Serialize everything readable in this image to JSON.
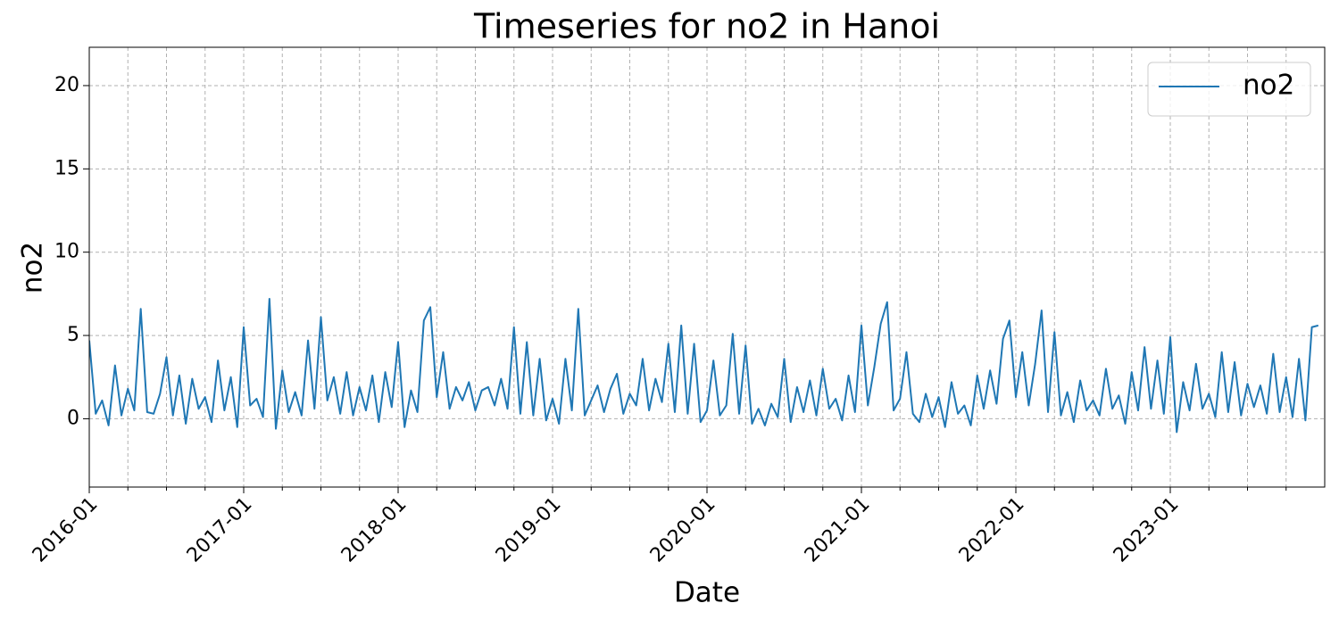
{
  "chart_data": {
    "type": "line",
    "title": "Timeseries for no2 in Hanoi",
    "x_label": "Date",
    "y_label": "no2",
    "x": [
      "2016-01",
      "2016-01",
      "2016-02",
      "2016-02",
      "2016-03",
      "2016-03",
      "2016-04",
      "2016-04",
      "2016-05",
      "2016-05",
      "2016-06",
      "2016-06",
      "2016-07",
      "2016-07",
      "2016-08",
      "2016-08",
      "2016-09",
      "2016-09",
      "2016-10",
      "2016-10",
      "2016-11",
      "2016-11",
      "2016-12",
      "2016-12",
      "2017-01",
      "2017-01",
      "2017-02",
      "2017-02",
      "2017-03",
      "2017-03",
      "2017-04",
      "2017-04",
      "2017-05",
      "2017-05",
      "2017-06",
      "2017-06",
      "2017-07",
      "2017-07",
      "2017-08",
      "2017-08",
      "2017-09",
      "2017-09",
      "2017-10",
      "2017-10",
      "2017-11",
      "2017-11",
      "2017-12",
      "2017-12",
      "2018-01",
      "2018-01",
      "2018-02",
      "2018-02",
      "2018-03",
      "2018-03",
      "2018-04",
      "2018-04",
      "2018-05",
      "2018-05",
      "2018-06",
      "2018-06",
      "2018-07",
      "2018-07",
      "2018-08",
      "2018-08",
      "2018-09",
      "2018-09",
      "2018-10",
      "2018-10",
      "2018-11",
      "2018-11",
      "2018-12",
      "2018-12",
      "2019-01",
      "2019-01",
      "2019-02",
      "2019-02",
      "2019-03",
      "2019-03",
      "2019-04",
      "2019-04",
      "2019-05",
      "2019-05",
      "2019-06",
      "2019-06",
      "2019-07",
      "2019-07",
      "2019-08",
      "2019-08",
      "2019-09",
      "2019-09",
      "2019-10",
      "2019-10",
      "2019-11",
      "2019-11",
      "2019-12",
      "2019-12",
      "2020-01",
      "2020-01",
      "2020-02",
      "2020-02",
      "2020-03",
      "2020-03",
      "2020-04",
      "2020-04",
      "2020-05",
      "2020-05",
      "2020-06",
      "2020-06",
      "2020-07",
      "2020-07",
      "2020-08",
      "2020-08",
      "2020-09",
      "2020-09",
      "2020-10",
      "2020-10",
      "2020-11",
      "2020-11",
      "2020-12",
      "2020-12",
      "2021-01",
      "2021-01",
      "2021-02",
      "2021-02",
      "2021-03",
      "2021-03",
      "2021-04",
      "2021-04",
      "2021-05",
      "2021-05",
      "2021-06",
      "2021-06",
      "2021-07",
      "2021-07",
      "2021-08",
      "2021-08",
      "2021-09",
      "2021-09",
      "2021-10",
      "2021-10",
      "2021-11",
      "2021-11",
      "2021-12",
      "2021-12",
      "2022-01",
      "2022-01",
      "2022-02",
      "2022-02",
      "2022-03",
      "2022-03",
      "2022-04",
      "2022-04",
      "2022-05",
      "2022-05",
      "2022-06",
      "2022-06",
      "2022-07",
      "2022-07",
      "2022-08",
      "2022-08",
      "2022-09",
      "2022-09",
      "2022-10",
      "2022-10",
      "2022-11",
      "2022-11",
      "2022-12",
      "2022-12",
      "2023-01",
      "2023-01",
      "2023-02",
      "2023-02",
      "2023-03",
      "2023-03",
      "2023-04",
      "2023-04",
      "2023-05",
      "2023-05",
      "2023-06",
      "2023-06",
      "2023-07",
      "2023-07",
      "2023-08",
      "2023-08",
      "2023-09",
      "2023-09",
      "2023-10",
      "2023-10",
      "2023-11",
      "2023-11",
      "2023-12",
      "2023-12"
    ],
    "series": [
      {
        "name": "no2",
        "color": "#1f77b4",
        "values": [
          4.7,
          0.3,
          1.1,
          -0.4,
          3.2,
          0.2,
          1.8,
          0.5,
          6.6,
          0.4,
          0.3,
          1.5,
          3.7,
          0.2,
          2.6,
          -0.3,
          2.4,
          0.6,
          1.3,
          -0.2,
          3.5,
          0.5,
          2.5,
          -0.5,
          5.5,
          0.8,
          1.2,
          0.1,
          7.2,
          -0.6,
          2.9,
          0.4,
          1.6,
          0.2,
          4.7,
          0.6,
          6.1,
          1.1,
          2.5,
          0.3,
          2.8,
          0.2,
          1.9,
          0.5,
          2.6,
          -0.2,
          2.8,
          0.7,
          4.6,
          -0.5,
          1.7,
          0.4,
          5.9,
          6.7,
          1.3,
          4.0,
          0.6,
          1.9,
          1.1,
          2.2,
          0.5,
          1.7,
          1.9,
          0.8,
          2.4,
          0.6,
          5.5,
          0.3,
          4.6,
          0.2,
          3.6,
          -0.1,
          1.2,
          -0.3,
          3.6,
          0.5,
          6.6,
          0.2,
          1.1,
          2.0,
          0.4,
          1.8,
          2.7,
          0.3,
          1.5,
          0.8,
          3.6,
          0.5,
          2.4,
          1.0,
          4.5,
          0.4,
          5.6,
          0.3,
          4.5,
          -0.2,
          0.5,
          3.5,
          0.2,
          0.8,
          5.1,
          0.3,
          4.4,
          -0.3,
          0.6,
          -0.4,
          0.9,
          0.1,
          3.6,
          -0.2,
          1.9,
          0.4,
          2.3,
          0.2,
          3.0,
          0.6,
          1.2,
          -0.1,
          2.6,
          0.4,
          5.6,
          0.8,
          3.1,
          5.7,
          7.0,
          0.5,
          1.2,
          4.0,
          0.3,
          -0.2,
          1.5,
          0.1,
          1.3,
          -0.5,
          2.2,
          0.3,
          0.8,
          -0.4,
          2.6,
          0.6,
          2.9,
          0.9,
          4.8,
          5.9,
          1.3,
          4.0,
          0.8,
          3.3,
          6.5,
          0.4,
          5.2,
          0.2,
          1.6,
          -0.2,
          2.3,
          0.5,
          1.1,
          0.2,
          3.0,
          0.6,
          1.4,
          -0.3,
          2.8,
          0.5,
          4.3,
          0.6,
          3.5,
          0.3,
          4.9,
          -0.8,
          2.2,
          0.5,
          3.3,
          0.6,
          1.5,
          0.1,
          4.0,
          0.4,
          3.4,
          0.2,
          2.1,
          0.7,
          2.0,
          0.3,
          3.9,
          0.4,
          2.5,
          0.1,
          3.6,
          -0.1,
          5.5,
          5.6
        ]
      }
    ],
    "xlim": [
      "2016-01",
      "2024-01"
    ],
    "xticks": [
      "2016-01",
      "2017-01",
      "2018-01",
      "2019-01",
      "2020-01",
      "2021-01",
      "2022-01",
      "2023-01"
    ],
    "x_minor_ticks": [
      "2016-04",
      "2016-07",
      "2016-10",
      "2017-04",
      "2017-07",
      "2017-10",
      "2018-04",
      "2018-07",
      "2018-10",
      "2019-04",
      "2019-07",
      "2019-10",
      "2020-04",
      "2020-07",
      "2020-10",
      "2021-04",
      "2021-07",
      "2021-10",
      "2022-04",
      "2022-07",
      "2022-10",
      "2023-04",
      "2023-07",
      "2023-10"
    ],
    "ylim": [
      -4.1,
      22.3
    ],
    "yticks": [
      0,
      5,
      10,
      15,
      20
    ],
    "grid": true,
    "legend": "upper right"
  }
}
